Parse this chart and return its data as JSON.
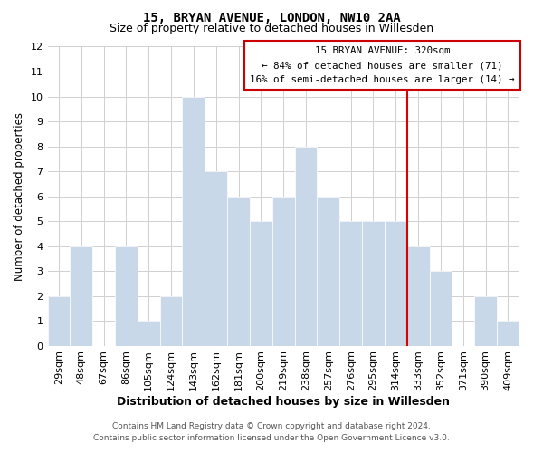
{
  "title": "15, BRYAN AVENUE, LONDON, NW10 2AA",
  "subtitle": "Size of property relative to detached houses in Willesden",
  "xlabel": "Distribution of detached houses by size in Willesden",
  "ylabel": "Number of detached properties",
  "bin_labels": [
    "29sqm",
    "48sqm",
    "67sqm",
    "86sqm",
    "105sqm",
    "124sqm",
    "143sqm",
    "162sqm",
    "181sqm",
    "200sqm",
    "219sqm",
    "238sqm",
    "257sqm",
    "276sqm",
    "295sqm",
    "314sqm",
    "333sqm",
    "352sqm",
    "371sqm",
    "390sqm",
    "409sqm"
  ],
  "bar_heights": [
    2,
    4,
    0,
    4,
    1,
    2,
    10,
    7,
    6,
    5,
    6,
    8,
    6,
    5,
    5,
    5,
    4,
    3,
    0,
    2,
    1
  ],
  "bar_color": "#c8d8e8",
  "bar_edgecolor": "#ffffff",
  "property_line_idx": 15,
  "property_line_color": "#dd0000",
  "ylim": [
    0,
    12
  ],
  "yticks": [
    0,
    1,
    2,
    3,
    4,
    5,
    6,
    7,
    8,
    9,
    10,
    11,
    12
  ],
  "annotation_title": "15 BRYAN AVENUE: 320sqm",
  "annotation_line1": "← 84% of detached houses are smaller (71)",
  "annotation_line2": "16% of semi-detached houses are larger (14) →",
  "annotation_box_color": "#ffffff",
  "annotation_box_edgecolor": "#cc0000",
  "footer_line1": "Contains HM Land Registry data © Crown copyright and database right 2024.",
  "footer_line2": "Contains public sector information licensed under the Open Government Licence v3.0.",
  "grid_color": "#d0d0d0",
  "background_color": "#ffffff",
  "title_fontsize": 10,
  "subtitle_fontsize": 9,
  "ylabel_fontsize": 8.5,
  "xlabel_fontsize": 9
}
